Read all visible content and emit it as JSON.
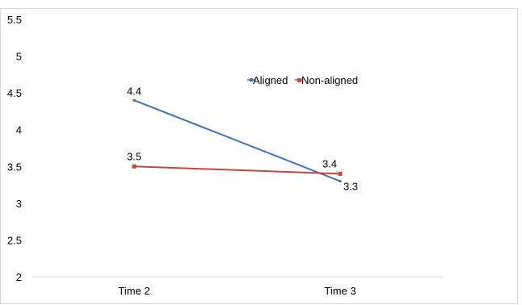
{
  "chart_data": {
    "type": "line",
    "title": "",
    "xlabel": "",
    "ylabel": "",
    "categories": [
      "Time 2",
      "Time 3"
    ],
    "ylim": [
      2,
      5.5
    ],
    "yticks": [
      "2",
      "2.5",
      "3",
      "3.5",
      "4",
      "4.5",
      "5",
      "5.5"
    ],
    "grid": false,
    "legend": "top-center",
    "series": [
      {
        "name": "Aligned",
        "values": [
          4.4,
          3.3
        ],
        "color": "#3f72b5",
        "labels": [
          "4.4",
          "3.3"
        ]
      },
      {
        "name": "Non-aligned",
        "values": [
          3.5,
          3.4
        ],
        "color": "#c8453d",
        "labels": [
          "3.5",
          "3.4"
        ]
      }
    ]
  }
}
